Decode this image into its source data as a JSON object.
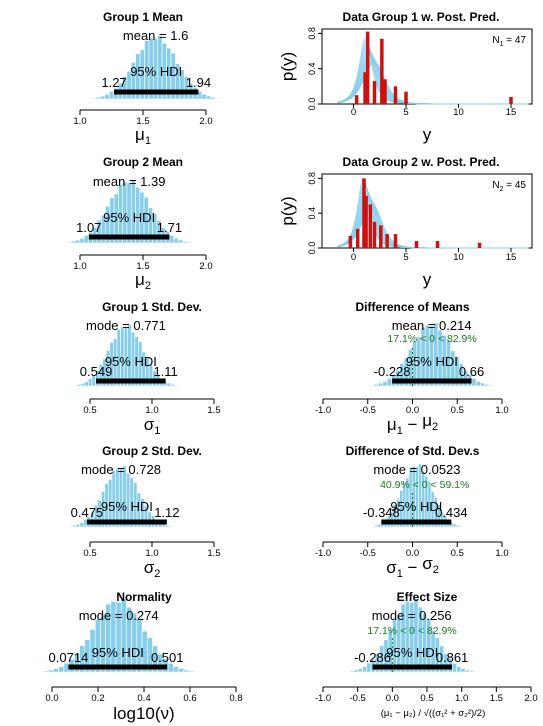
{
  "colors": {
    "hist": "#87ceeb",
    "hist_stroke": "#ffffff",
    "hdi": "#000000",
    "postpred": "#87ceeb",
    "data_bar": "#cc1111",
    "compare": "#1f7a1f",
    "axis": "#000000"
  },
  "chart_data": [
    {
      "type": "bar",
      "id": "g1-mean",
      "title": "Group 1 Mean",
      "xlabel_main": "μ",
      "xlabel_sub": "1",
      "xlim": [
        1.0,
        2.0
      ],
      "ticks": [
        1.0,
        1.5,
        2.0
      ],
      "tick_labels": [
        "1.0",
        "1.5",
        "2.0"
      ],
      "center": 1.6,
      "spread": 0.17,
      "stat_label": "mean = 1.6",
      "hdi_label": "95% HDI",
      "hdi": [
        1.27,
        1.94
      ],
      "hdi_labels": [
        "1.27",
        "1.94"
      ]
    },
    {
      "type": "bar",
      "id": "g2-mean",
      "title": "Group 2 Mean",
      "xlabel_main": "μ",
      "xlabel_sub": "2",
      "xlim": [
        1.0,
        2.0
      ],
      "ticks": [
        1.0,
        1.5,
        2.0
      ],
      "tick_labels": [
        "1.0",
        "1.5",
        "2.0"
      ],
      "center": 1.39,
      "spread": 0.165,
      "stat_label": "mean = 1.39",
      "hdi_label": "95% HDI",
      "hdi": [
        1.07,
        1.71
      ],
      "hdi_labels": [
        "1.07",
        "1.71"
      ]
    },
    {
      "type": "bar",
      "id": "g1-sd",
      "title": "Group 1 Std. Dev.",
      "xlabel_main": "σ",
      "xlabel_sub": "1",
      "xlim": [
        0.5,
        1.5
      ],
      "ticks": [
        0.5,
        1.0,
        1.5
      ],
      "tick_labels": [
        "0.5",
        "1.0",
        "1.5"
      ],
      "center": 0.79,
      "spread": 0.14,
      "stat_label": "mode = 0.771",
      "hdi_label": "95% HDI",
      "hdi": [
        0.549,
        1.11
      ],
      "hdi_labels": [
        "0.549",
        "1.11"
      ]
    },
    {
      "type": "bar",
      "id": "g2-sd",
      "title": "Group 2 Std. Dev.",
      "xlabel_main": "σ",
      "xlabel_sub": "2",
      "xlim": [
        0.5,
        1.5
      ],
      "ticks": [
        0.5,
        1.0,
        1.5
      ],
      "tick_labels": [
        "0.5",
        "1.0",
        "1.5"
      ],
      "center": 0.75,
      "spread": 0.14,
      "stat_label": "mode = 0.728",
      "hdi_label": "95% HDI",
      "hdi": [
        0.475,
        1.12
      ],
      "hdi_labels": [
        "0.475",
        "1.12"
      ]
    },
    {
      "type": "bar",
      "id": "normality",
      "title": "Normality",
      "xlabel_main": "log10(ν)",
      "xlabel_sub": "",
      "xlim": [
        0.0,
        0.8
      ],
      "ticks": [
        0.0,
        0.2,
        0.4,
        0.6,
        0.8
      ],
      "tick_labels": [
        "0.0",
        "0.2",
        "0.4",
        "0.6",
        "0.8"
      ],
      "center": 0.29,
      "spread": 0.11,
      "stat_label": "mode = 0.274",
      "hdi_label": "95% HDI",
      "hdi": [
        0.0714,
        0.501
      ],
      "hdi_labels": [
        "0.0714",
        "0.501"
      ]
    },
    {
      "type": "bar",
      "id": "diff-means",
      "title": "Difference of Means",
      "xlabel_main": "μ",
      "xlabel_sub": "1",
      "xlabel_mid": " − ",
      "xlabel_main2": "μ",
      "xlabel_sub2": "2",
      "xlim": [
        -1.0,
        1.0
      ],
      "ticks": [
        -1.0,
        -0.5,
        0.0,
        0.5,
        1.0
      ],
      "tick_labels": [
        "-1.0",
        "-0.5",
        "0.0",
        "0.5",
        "1.0"
      ],
      "center": 0.214,
      "spread": 0.23,
      "stat_label": "mean = 0.214",
      "compare_label": "17.1% < 0 < 82.9%",
      "compare_value": 0,
      "hdi_label": "95% HDI",
      "hdi": [
        -0.228,
        0.66
      ],
      "hdi_labels": [
        "-0.228",
        "0.66"
      ]
    },
    {
      "type": "bar",
      "id": "diff-sds",
      "title": "Difference of Std. Dev.s",
      "xlabel_main": "σ",
      "xlabel_sub": "1",
      "xlabel_mid": " − ",
      "xlabel_main2": "σ",
      "xlabel_sub2": "2",
      "xlim": [
        -1.0,
        1.0
      ],
      "ticks": [
        -1.0,
        -0.5,
        0.0,
        0.5,
        1.0
      ],
      "tick_labels": [
        "-1.0",
        "-0.5",
        "0.0",
        "0.5",
        "1.0"
      ],
      "center": 0.05,
      "spread": 0.17,
      "stat_label": "mode = 0.0523",
      "compare_label": "40.9% < 0 < 59.1%",
      "compare_value": 0,
      "hdi_label": "95% HDI",
      "hdi": [
        -0.348,
        0.434
      ],
      "hdi_labels": [
        "-0.348",
        "0.434"
      ]
    },
    {
      "type": "bar",
      "id": "effect-size",
      "title": "Effect Size",
      "xlabel_formula": "(μ₁ − μ₂) / √((σ₁² + σ₂²)/2)",
      "xlim": [
        -1.0,
        2.0
      ],
      "ticks": [
        -1.0,
        -0.5,
        0.0,
        0.5,
        1.0,
        1.5,
        2.0
      ],
      "tick_labels": [
        "-1.0",
        "-0.5",
        "0.0",
        "0.5",
        "1.0",
        "1.5",
        "2.0"
      ],
      "center": 0.28,
      "spread": 0.3,
      "stat_label": "mode = 0.256",
      "compare_label": "17.1% < 0 < 82.9%",
      "compare_value": 0,
      "hdi_label": "95% HDI",
      "hdi": [
        -0.286,
        0.861
      ],
      "hdi_labels": [
        "-0.286",
        "0.861"
      ]
    },
    {
      "type": "line",
      "id": "postpred-1",
      "title": "Data Group 1 w. Post. Pred.",
      "xlabel": "y",
      "ylabel": "p(y)",
      "xlim": [
        -3,
        17
      ],
      "ylim": [
        0,
        0.85
      ],
      "xticks": [
        0,
        5,
        10,
        15
      ],
      "yticks": [
        0.0,
        0.4,
        0.8
      ],
      "ytick_labels": [
        "0.0",
        "0.4",
        "0.8"
      ],
      "n_label": "N",
      "n_sub": "1",
      "n_value": "= 47",
      "curve_center": 1.6,
      "curve_scale": 0.75,
      "data_x": [
        0.3,
        1.1,
        1.35,
        2.0,
        2.7,
        3.0,
        4.0,
        5.0,
        15.0
      ],
      "data_density": [
        0.1,
        0.36,
        0.82,
        0.26,
        0.74,
        0.28,
        0.2,
        0.14,
        0.08
      ]
    },
    {
      "type": "line",
      "id": "postpred-2",
      "title": "Data Group 2 w. Post. Pred.",
      "xlabel": "y",
      "ylabel": "p(y)",
      "xlim": [
        -3,
        17
      ],
      "ylim": [
        0,
        0.85
      ],
      "xticks": [
        0,
        5,
        10,
        15
      ],
      "yticks": [
        0.0,
        0.4,
        0.8
      ],
      "ytick_labels": [
        "0.0",
        "0.4",
        "0.8"
      ],
      "n_label": "N",
      "n_sub": "2",
      "n_value": "= 45",
      "curve_center": 1.39,
      "curve_scale": 0.7,
      "data_x": [
        -0.3,
        0.4,
        1.0,
        1.2,
        1.6,
        2.0,
        2.6,
        3.2,
        4.0,
        6.0,
        8.0,
        12.0
      ],
      "data_density": [
        0.14,
        0.22,
        0.8,
        0.6,
        0.5,
        0.3,
        0.26,
        0.16,
        0.16,
        0.08,
        0.08,
        0.06
      ]
    }
  ]
}
